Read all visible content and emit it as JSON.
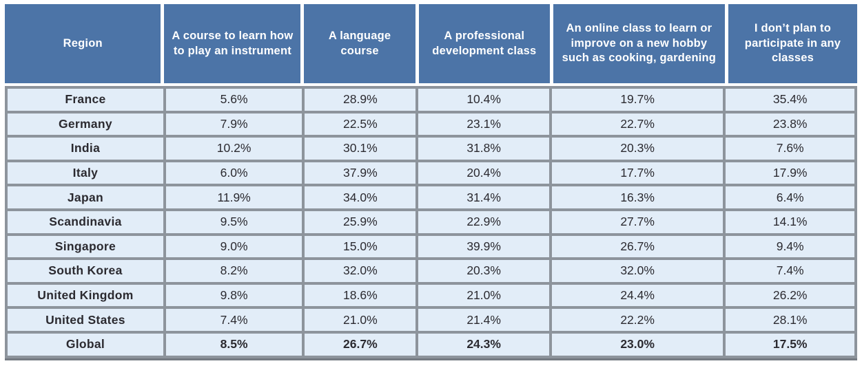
{
  "table": {
    "columns": [
      "Region",
      "A course to learn how to play an instrument",
      "A language course",
      "A professional development class",
      "An online class to learn or improve on a new hobby such as cooking, gardening",
      "I don’t plan to participate in any classes"
    ],
    "rows": [
      {
        "region": "France",
        "values": [
          "5.6%",
          "28.9%",
          "10.4%",
          "19.7%",
          "35.4%"
        ],
        "bold": false
      },
      {
        "region": "Germany",
        "values": [
          "7.9%",
          "22.5%",
          "23.1%",
          "22.7%",
          "23.8%"
        ],
        "bold": false
      },
      {
        "region": "India",
        "values": [
          "10.2%",
          "30.1%",
          "31.8%",
          "20.3%",
          "7.6%"
        ],
        "bold": false
      },
      {
        "region": "Italy",
        "values": [
          "6.0%",
          "37.9%",
          "20.4%",
          "17.7%",
          "17.9%"
        ],
        "bold": false
      },
      {
        "region": "Japan",
        "values": [
          "11.9%",
          "34.0%",
          "31.4%",
          "16.3%",
          "6.4%"
        ],
        "bold": false
      },
      {
        "region": "Scandinavia",
        "values": [
          "9.5%",
          "25.9%",
          "22.9%",
          "27.7%",
          "14.1%"
        ],
        "bold": false
      },
      {
        "region": "Singapore",
        "values": [
          "9.0%",
          "15.0%",
          "39.9%",
          "26.7%",
          "9.4%"
        ],
        "bold": false
      },
      {
        "region": "South Korea",
        "values": [
          "8.2%",
          "32.0%",
          "20.3%",
          "32.0%",
          "7.4%"
        ],
        "bold": false
      },
      {
        "region": "United Kingdom",
        "values": [
          "9.8%",
          "18.6%",
          "21.0%",
          "24.4%",
          "26.2%"
        ],
        "bold": false
      },
      {
        "region": "United States",
        "values": [
          "7.4%",
          "21.0%",
          "21.4%",
          "22.2%",
          "28.1%"
        ],
        "bold": false
      },
      {
        "region": "Global",
        "values": [
          "8.5%",
          "26.7%",
          "24.3%",
          "23.0%",
          "17.5%"
        ],
        "bold": true
      }
    ]
  },
  "chart_data": {
    "type": "table",
    "unit": "percent",
    "columns": [
      "Region",
      "A course to learn how to play an instrument",
      "A language course",
      "A professional development class",
      "An online class to learn or improve on a new hobby such as cooking, gardening",
      "I don’t plan to participate in any classes"
    ],
    "categories": [
      "France",
      "Germany",
      "India",
      "Italy",
      "Japan",
      "Scandinavia",
      "Singapore",
      "South Korea",
      "United Kingdom",
      "United States",
      "Global"
    ],
    "series": [
      {
        "name": "A course to learn how to play an instrument",
        "values": [
          5.6,
          7.9,
          10.2,
          6.0,
          11.9,
          9.5,
          9.0,
          8.2,
          9.8,
          7.4,
          8.5
        ]
      },
      {
        "name": "A language course",
        "values": [
          28.9,
          22.5,
          30.1,
          37.9,
          34.0,
          25.9,
          15.0,
          32.0,
          18.6,
          21.0,
          26.7
        ]
      },
      {
        "name": "A professional development class",
        "values": [
          10.4,
          23.1,
          31.8,
          20.4,
          31.4,
          22.9,
          39.9,
          20.3,
          21.0,
          21.4,
          24.3
        ]
      },
      {
        "name": "An online class to learn or improve on a new hobby such as cooking, gardening",
        "values": [
          19.7,
          22.7,
          20.3,
          17.7,
          16.3,
          27.7,
          26.7,
          32.0,
          24.4,
          22.2,
          23.0
        ]
      },
      {
        "name": "I don’t plan to participate in any classes",
        "values": [
          35.4,
          23.8,
          7.6,
          17.9,
          6.4,
          14.1,
          9.4,
          7.4,
          26.2,
          28.1,
          17.5
        ]
      }
    ]
  },
  "colors": {
    "header_bg": "#4C74A7",
    "header_text": "#FFFFFF",
    "cell_bg": "#E2EDF8",
    "grid": "#8D949C",
    "text": "#2B2A30"
  }
}
